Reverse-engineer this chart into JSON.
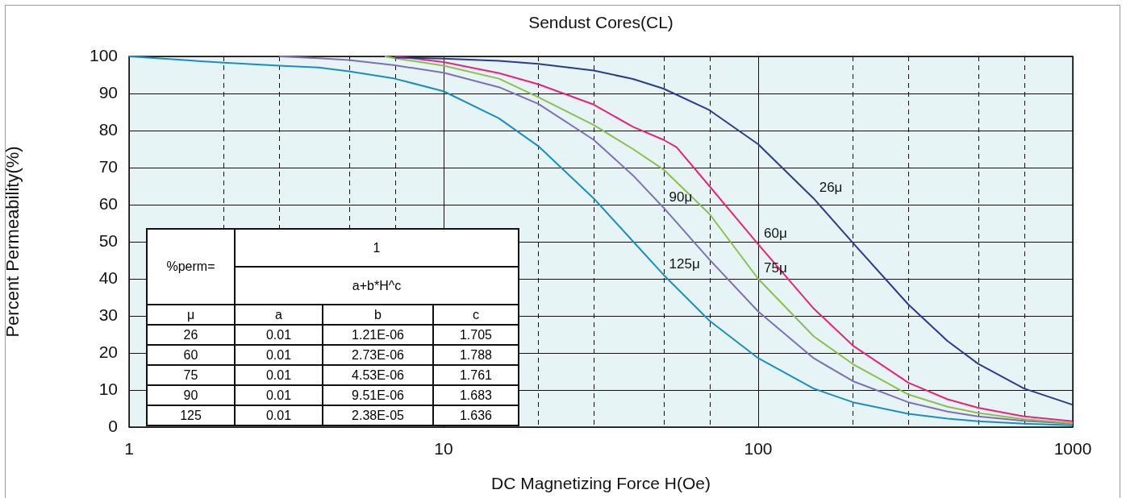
{
  "chart_data": {
    "type": "line",
    "title": "Sendust Cores(CL)",
    "xlabel": "DC Magnetizing Force H(Oe)",
    "ylabel": "Percent Permeability(%)",
    "log": "x",
    "xlim": [
      1,
      1000
    ],
    "ylim": [
      0,
      100
    ],
    "xticks": [
      1,
      {
        "value": 2,
        "label": null
      },
      {
        "value": 3,
        "label": null
      },
      {
        "value": 5,
        "label": null
      },
      {
        "value": 7,
        "label": null
      },
      10,
      {
        "value": 20,
        "label": null
      },
      {
        "value": 30,
        "label": null
      },
      {
        "value": 50,
        "label": null
      },
      {
        "value": 70,
        "label": null
      },
      100,
      {
        "value": 200,
        "label": null
      },
      {
        "value": 300,
        "label": null
      },
      {
        "value": 500,
        "label": null
      },
      {
        "value": 700,
        "label": null
      },
      1000
    ],
    "yticks": [
      0,
      10,
      20,
      30,
      40,
      50,
      60,
      70,
      80,
      90,
      100
    ],
    "grid": true,
    "legend": false,
    "series": [
      {
        "color": "#2e3a8c",
        "x": [
          7,
          10,
          15,
          20,
          30,
          40,
          50,
          70,
          100,
          150,
          200,
          300,
          400,
          500,
          700,
          1000
        ],
        "values": [
          99.7,
          99.4,
          98.8,
          98,
          96.2,
          93.9,
          91.3,
          85.5,
          76.3,
          61.7,
          49.7,
          33.1,
          23.2,
          17.1,
          10.4,
          6
        ]
      },
      {
        "color": "#e8237a",
        "x": [
          7,
          10,
          15,
          20,
          30,
          40,
          50,
          55,
          70,
          100,
          150,
          200,
          300,
          400,
          500,
          700,
          1000
        ],
        "values": [
          100,
          98.5,
          95.5,
          92.5,
          87,
          81,
          77.5,
          75.5,
          65,
          49.3,
          32,
          22,
          12,
          7.5,
          5.2,
          2.9,
          1.6
        ]
      },
      {
        "color": "#8cbf4e",
        "x": [
          6.5,
          7,
          10,
          15,
          20,
          30,
          40,
          50,
          70,
          100,
          150,
          200,
          300,
          400,
          500,
          700,
          1000
        ],
        "values": [
          100,
          99.5,
          97.5,
          94,
          89,
          81.5,
          75,
          69.5,
          57.5,
          40,
          24.5,
          17,
          8.8,
          5.5,
          3.8,
          2.1,
          1.1
        ]
      },
      {
        "color": "#7f6fb5",
        "x": [
          3,
          4,
          5,
          7,
          10,
          15,
          20,
          30,
          40,
          50,
          70,
          100,
          150,
          200,
          300,
          400,
          500,
          700,
          1000
        ],
        "values": [
          100,
          99.5,
          99,
          97.6,
          95.6,
          91.7,
          87.2,
          77.5,
          67.9,
          59.2,
          45.2,
          31.2,
          18.6,
          12.4,
          6.7,
          4.2,
          2.9,
          1.7,
          0.9
        ]
      },
      {
        "color": "#1a8fbf",
        "x": [
          1,
          1.5,
          2,
          3,
          4,
          5,
          7,
          10,
          15,
          20,
          30,
          40,
          50,
          70,
          100,
          150,
          200,
          300,
          400,
          500,
          700,
          1000
        ],
        "values": [
          100,
          99,
          98.3,
          97.5,
          97,
          96,
          94,
          90.6,
          83.3,
          75.8,
          61.7,
          50.1,
          41.1,
          28.7,
          18.6,
          10.4,
          6.7,
          3.6,
          2.3,
          1.6,
          0.9,
          0.5
        ]
      }
    ],
    "annotations": [
      {
        "text": "26μ",
        "x": 150,
        "y": 61.7
      },
      {
        "text": "60μ",
        "x": 100,
        "y": 49.3
      },
      {
        "text": "75μ",
        "x": 100,
        "y": 40
      },
      {
        "text": "90μ",
        "x": 50,
        "y": 59.2
      },
      {
        "text": "125μ",
        "x": 50,
        "y": 41.1
      },
      "%perm=",
      "1",
      "a+b*H^c",
      "μ",
      "a",
      "b",
      "c",
      "26",
      "0.01",
      "1.21E-06",
      "1.705",
      "60",
      "0.01",
      "2.73E-06",
      "1.788",
      "75",
      "0.01",
      "4.53E-06",
      "1.761",
      "90",
      "0.01",
      "9.51E-06",
      "1.683",
      "125",
      "0.01",
      "2.38E-05",
      "1.636"
    ]
  }
}
